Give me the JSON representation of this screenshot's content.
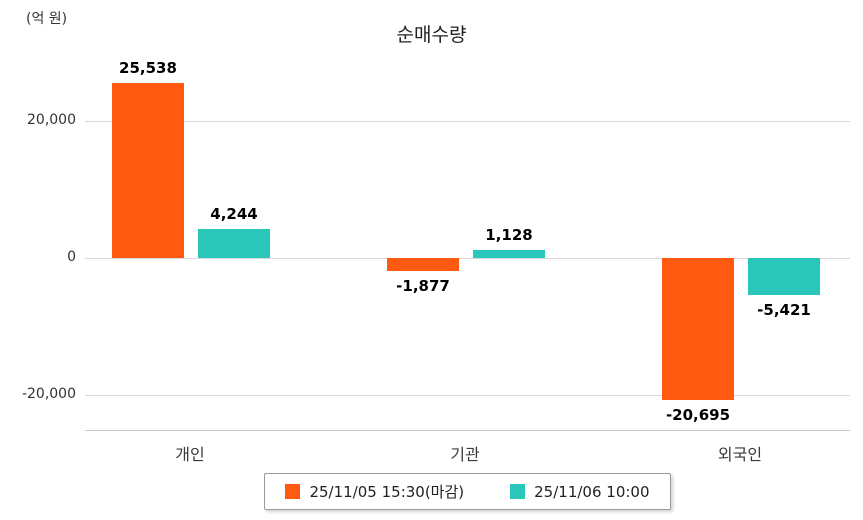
{
  "title": "순매수량",
  "unit_label": "(억 원)",
  "chart_data": {
    "type": "bar",
    "title": "순매수량",
    "ylabel": "(억 원)",
    "categories": [
      "개인",
      "기관",
      "외국인"
    ],
    "series": [
      {
        "name": "25/11/05 15:30(마감)",
        "color": "#FF5A0F",
        "values": [
          25538,
          -1877,
          -20695
        ],
        "labels": [
          "25,538",
          "-1,877",
          "-20,695"
        ]
      },
      {
        "name": "25/11/06 10:00",
        "color": "#29C7B9",
        "values": [
          4244,
          1128,
          -5421
        ],
        "labels": [
          "4,244",
          "1,128",
          "-5,421"
        ]
      }
    ],
    "yticks": [
      {
        "value": 20000,
        "label": "20,000"
      },
      {
        "value": 0,
        "label": "0"
      },
      {
        "value": -20000,
        "label": "-20,000"
      }
    ],
    "ylim": [
      -26000,
      30000
    ],
    "grid": true,
    "legend_position": "bottom"
  }
}
